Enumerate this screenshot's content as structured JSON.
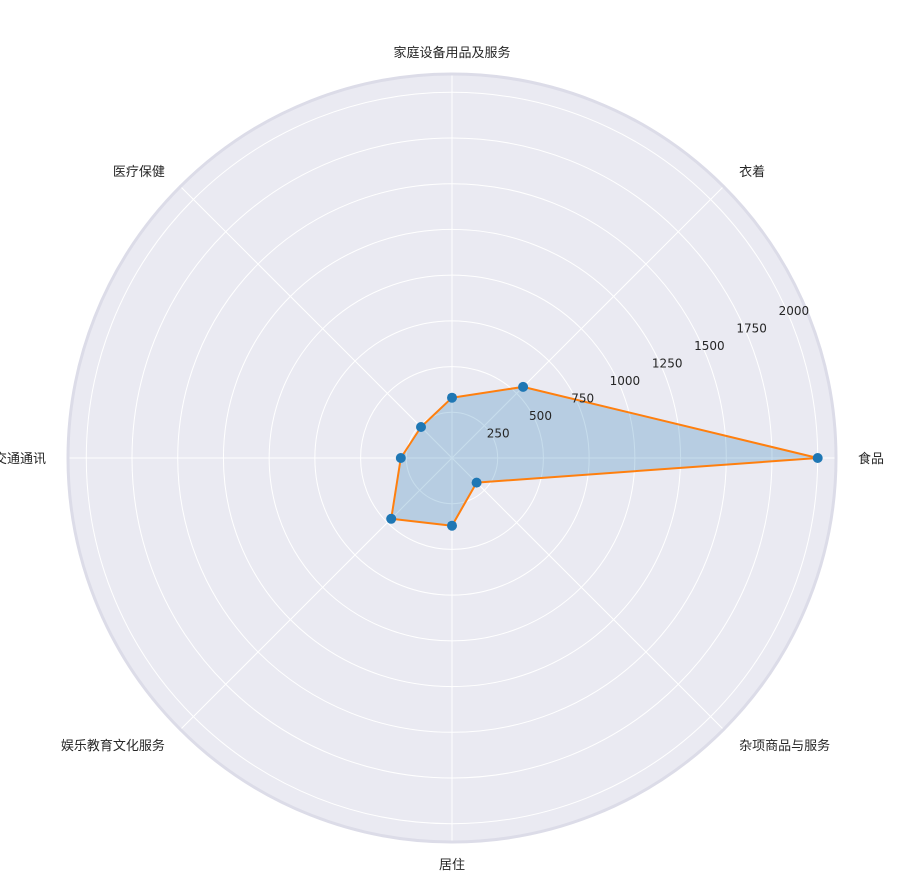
{
  "chart_data": {
    "type": "radar",
    "categories": [
      "食品",
      "衣着",
      "家庭设备用品及服务",
      "医疗保健",
      "交通通讯",
      "娱乐教育文化服务",
      "居住",
      "杂项商品与服务"
    ],
    "values": [
      2000,
      550,
      330,
      240,
      280,
      470,
      370,
      190
    ],
    "rlim": [
      0,
      2100
    ],
    "r_ticks": [
      250,
      500,
      750,
      1000,
      1250,
      1500,
      1750,
      2000
    ],
    "r_tick_labels": [
      "250",
      "500",
      "750",
      "1000",
      "1250",
      "1500",
      "1750",
      "2000"
    ],
    "grid": true,
    "colors": {
      "background": "#eaeaf2",
      "grid": "#ffffff",
      "line": "#ff7f0e",
      "marker": "#1f77b4",
      "fill": "#1f77b4",
      "outer_ring": "#dcdce8"
    }
  }
}
